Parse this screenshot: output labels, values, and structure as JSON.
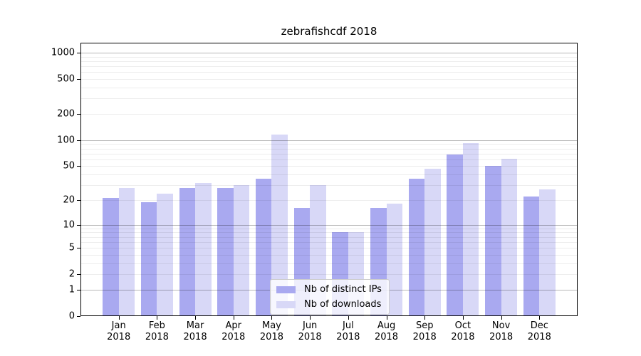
{
  "title": "zebrafishcdf 2018",
  "legend": {
    "items": [
      {
        "label": "Nb of distinct IPs",
        "color": "#a9a9f0"
      },
      {
        "label": "Nb of downloads",
        "color": "#d8d8f7"
      }
    ]
  },
  "chart_data": {
    "type": "bar",
    "title": "zebrafishcdf 2018",
    "categories": [
      "Jan 2018",
      "Feb 2018",
      "Mar 2018",
      "Apr 2018",
      "May 2018",
      "Jun 2018",
      "Jul 2018",
      "Aug 2018",
      "Sep 2018",
      "Oct 2018",
      "Nov 2018",
      "Dec 2018"
    ],
    "month_labels": [
      "Jan",
      "Feb",
      "Mar",
      "Apr",
      "May",
      "Jun",
      "Jul",
      "Aug",
      "Sep",
      "Oct",
      "Nov",
      "Dec"
    ],
    "year_label": "2018",
    "series": [
      {
        "name": "Nb of distinct IPs",
        "color": "#a9a9f0",
        "values": [
          21,
          19,
          28,
          28,
          36,
          16,
          8,
          16,
          36,
          68,
          50,
          22
        ]
      },
      {
        "name": "Nb of downloads",
        "color": "#d8d8f7",
        "values": [
          28,
          24,
          32,
          30,
          115,
          30,
          8,
          18,
          47,
          92,
          61,
          27
        ]
      }
    ],
    "xlabel": "",
    "ylabel": "",
    "yscale": "log(1+x)",
    "ytick_values": [
      0,
      1,
      2,
      5,
      10,
      20,
      50,
      100,
      200,
      500,
      1000
    ],
    "ytick_labels": [
      "0",
      "1",
      "2",
      "5",
      "10",
      "20",
      "50",
      "100",
      "200",
      "500",
      "1000"
    ],
    "ylim": [
      0,
      1300
    ],
    "grid": "major+minor horizontal",
    "legend_position": "lower center"
  }
}
